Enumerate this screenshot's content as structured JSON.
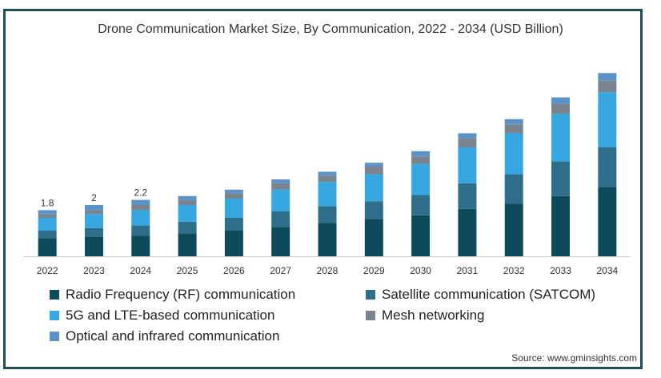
{
  "chart_data": {
    "type": "bar",
    "stacked": true,
    "title": "Drone Communication Market Size, By Communication, 2022 - 2034 (USD Billion)",
    "categories": [
      "2022",
      "2023",
      "2024",
      "2025",
      "2026",
      "2027",
      "2028",
      "2029",
      "2030",
      "2031",
      "2032",
      "2033",
      "2034"
    ],
    "series": [
      {
        "name": "Radio Frequency (RF) communication",
        "color": "#0d4a5c",
        "values": [
          0.7,
          0.75,
          0.8,
          0.9,
          1.0,
          1.15,
          1.3,
          1.45,
          1.6,
          1.85,
          2.05,
          2.35,
          2.7
        ]
      },
      {
        "name": "Satellite communication (SATCOM)",
        "color": "#2f6e8a",
        "values": [
          0.3,
          0.35,
          0.4,
          0.45,
          0.5,
          0.6,
          0.65,
          0.7,
          0.8,
          1.0,
          1.15,
          1.35,
          1.55
        ]
      },
      {
        "name": "5G and LTE-based communication",
        "color": "#36a7e0",
        "values": [
          0.5,
          0.55,
          0.6,
          0.65,
          0.75,
          0.85,
          0.95,
          1.05,
          1.2,
          1.4,
          1.6,
          1.85,
          2.15
        ]
      },
      {
        "name": "Mesh networking",
        "color": "#7a848f",
        "values": [
          0.15,
          0.15,
          0.2,
          0.2,
          0.2,
          0.25,
          0.25,
          0.3,
          0.3,
          0.35,
          0.35,
          0.4,
          0.45
        ]
      },
      {
        "name": "Optical and infrared communication",
        "color": "#5b93c9",
        "values": [
          0.15,
          0.2,
          0.2,
          0.15,
          0.15,
          0.15,
          0.15,
          0.15,
          0.2,
          0.2,
          0.2,
          0.25,
          0.3
        ]
      }
    ],
    "data_labels": [
      {
        "category": "2022",
        "label": "1.8"
      },
      {
        "category": "2023",
        "label": "2"
      },
      {
        "category": "2024",
        "label": "2.2"
      }
    ],
    "ylim": [
      0,
      7.5
    ],
    "grid": false,
    "legend_position": "bottom",
    "source": "Source: www.gminsights.com"
  }
}
